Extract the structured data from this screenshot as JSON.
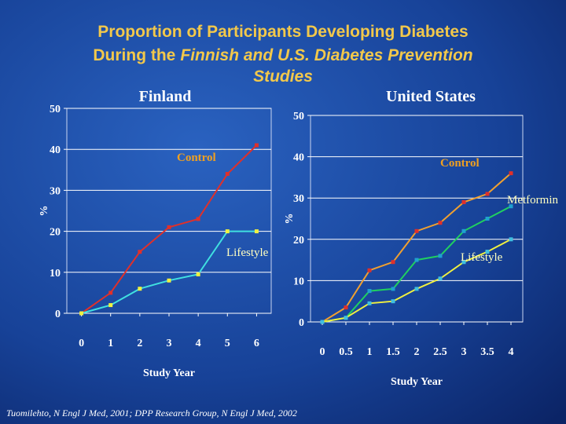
{
  "slide": {
    "title": [
      "Proportion of Participants Developing Diabetes",
      "During the",
      "Finnish and U.S. Diabetes Prevention",
      "Studies"
    ],
    "source": "Tuomilehto, N Engl J Med, 2001; DPP Research Group, N Engl J Med, 2002"
  },
  "chart_data": [
    {
      "type": "line",
      "title": "Finland",
      "x_label": "Study Year",
      "y_label": "%",
      "x": [
        0,
        1,
        2,
        3,
        4,
        5,
        6
      ],
      "xlim": [
        -0.5,
        6.5
      ],
      "xticks": [
        0,
        1,
        2,
        3,
        4,
        5,
        6
      ],
      "ylim": [
        0,
        50
      ],
      "yticks": [
        0,
        10,
        20,
        30,
        40,
        50
      ],
      "grid": true,
      "series": [
        {
          "name": "Control",
          "color": "#e0302a",
          "marker_color": "#e0302a",
          "label_color": "#f0a020",
          "values": [
            0,
            5,
            15,
            21,
            23,
            34,
            41
          ]
        },
        {
          "name": "Lifestyle",
          "color": "#40e0e0",
          "marker_color": "#f0f040",
          "label_color": "#ffffc0",
          "values": [
            0,
            2,
            6,
            8,
            9.5,
            20,
            20
          ]
        }
      ]
    },
    {
      "type": "line",
      "title": "United States",
      "x_label": "Study Year",
      "y_label": "%",
      "x": [
        0,
        0.5,
        1,
        1.5,
        2,
        2.5,
        3,
        3.5,
        4
      ],
      "xlim": [
        -0.25,
        4.25
      ],
      "xticks": [
        0,
        0.5,
        1,
        1.5,
        2,
        2.5,
        3,
        3.5,
        4
      ],
      "ylim": [
        0,
        50
      ],
      "yticks": [
        0,
        10,
        20,
        30,
        40,
        50
      ],
      "grid": true,
      "series": [
        {
          "name": "Control",
          "color": "#f0a030",
          "marker_color": "#e0302a",
          "label_color": "#f0a020",
          "values": [
            0,
            3.5,
            12.5,
            14.5,
            22,
            24,
            29,
            31,
            36
          ]
        },
        {
          "name": "Metformin",
          "color": "#20d060",
          "marker_color": "#20a0d0",
          "label_color": "#ffffc0",
          "values": [
            0,
            1,
            7.5,
            8,
            15,
            16,
            22,
            25,
            28
          ]
        },
        {
          "name": "Lifestyle",
          "color": "#f0f040",
          "marker_color": "#40c0e0",
          "label_color": "#ffffc0",
          "values": [
            0,
            1,
            4.5,
            5,
            8,
            10.5,
            14.5,
            17,
            20
          ]
        }
      ]
    }
  ]
}
